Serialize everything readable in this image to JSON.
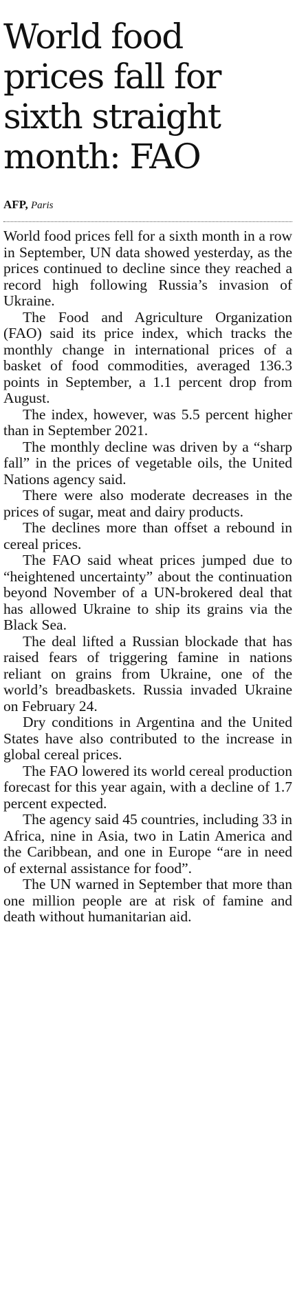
{
  "article": {
    "headline": "World food prices fall for sixth straight month: FAO",
    "byline": {
      "agency": "AFP,",
      "place": "Paris"
    },
    "paragraphs": [
      "World food prices fell for a sixth month in a row in September, UN data showed yesterday, as the prices continued to decline since they reached a record high following Russia’s invasion of Ukraine.",
      "The Food and Agriculture Organization (FAO) said its price index, which tracks the monthly change in international prices of a basket of food commodities, averaged 136.3 points in September, a 1.1 percent drop from August.",
      "The index, however, was 5.5 percent higher than in September 2021.",
      "The monthly decline was driven by a “sharp fall” in the prices of vegetable oils, the United Nations agency said.",
      "There were also moderate decreases in the prices of sugar, meat and dairy products.",
      "The declines more than offset a rebound in cereal prices.",
      "The FAO said wheat prices jumped due to “heightened uncertainty” about the continuation beyond November of a UN-brokered deal that has allowed Ukraine to ship its grains via the Black Sea.",
      "The deal lifted a Russian blockade that has raised fears of triggering famine in nations reliant on grains from Ukraine, one of the world’s breadbaskets. Russia invaded Ukraine on February 24.",
      "Dry conditions in Argentina and the United States have also contributed to the increase in global cereal prices.",
      "The FAO lowered its world cereal production forecast for this year again, with a decline of 1.7 percent expected.",
      "The agency said 45 countries, including 33 in Africa, nine in Asia, two in Latin America and the Caribbean, and one in Europe “are in need of external assistance for food”.",
      "The UN warned in September that more than one million people are at risk of famine and death without humanitarian aid."
    ]
  }
}
